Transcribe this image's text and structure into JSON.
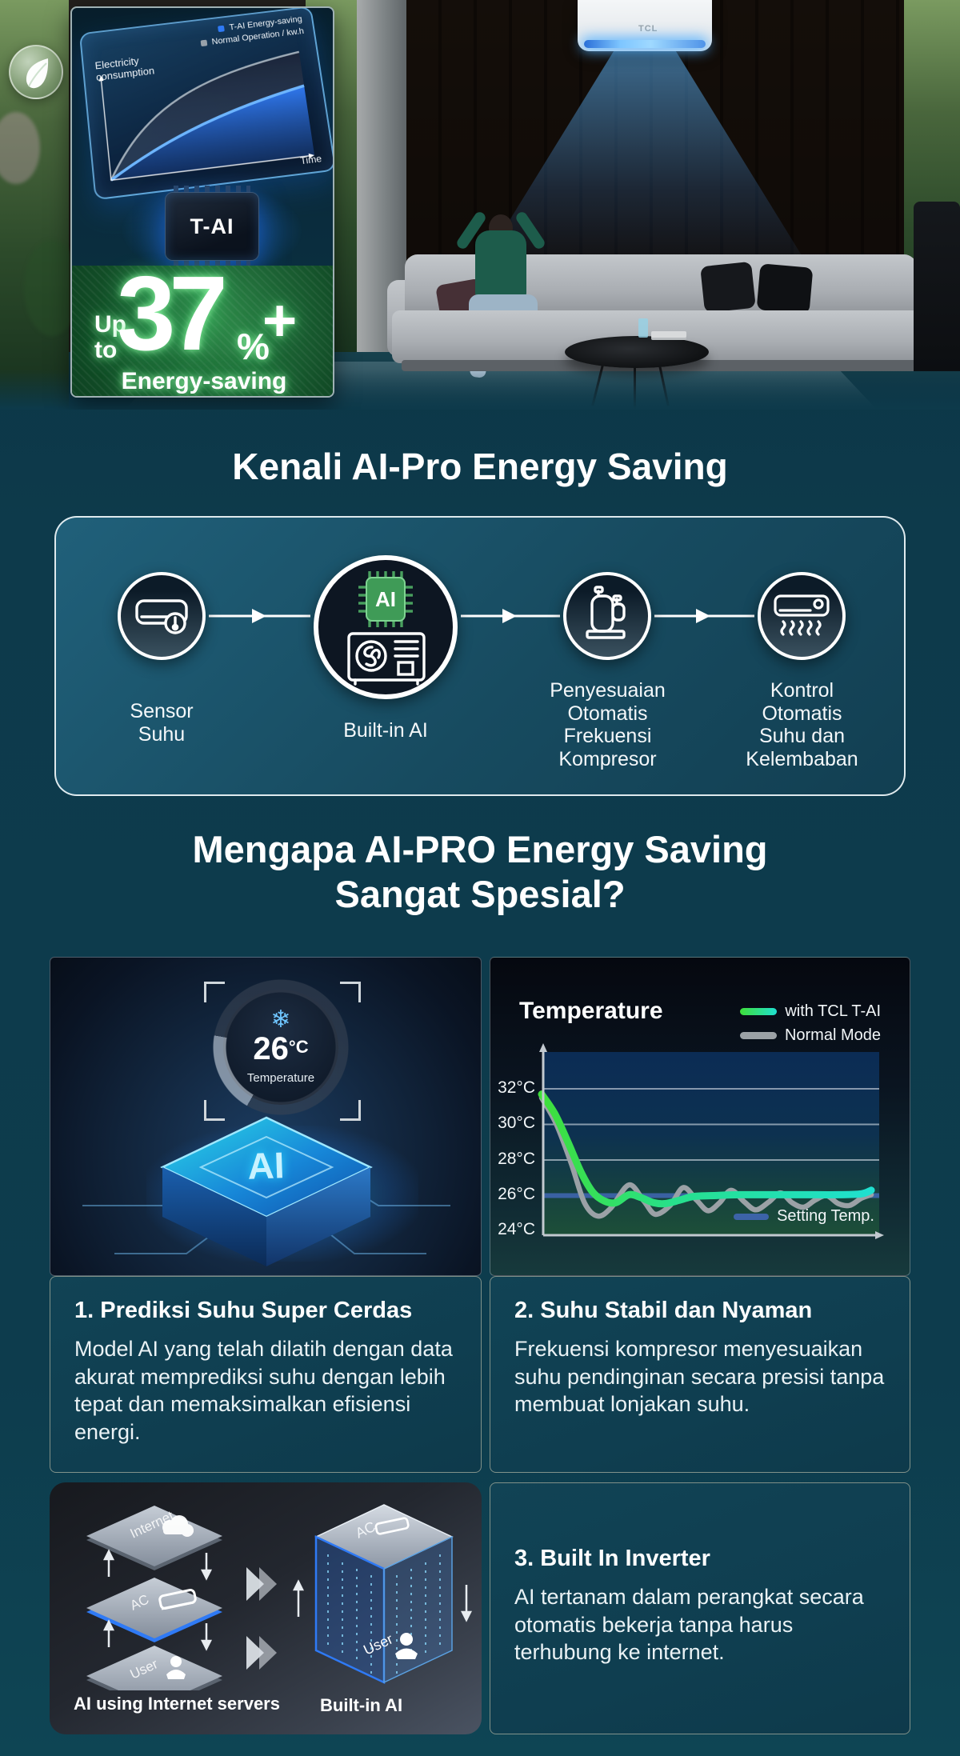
{
  "hero": {
    "ac_logo": "TCL",
    "leaf_icon": "eco-leaf",
    "chart": {
      "ylabel": "Electricity\nconsumption",
      "xlabel": "Time",
      "legend": [
        {
          "label": "T-AI Energy-saving",
          "color": "#2f7af5"
        },
        {
          "label": "Normal Operation / kw.h",
          "color": "#98a2aa"
        }
      ]
    },
    "chip_label": "T-AI",
    "badge": {
      "up_to": "Up\nto",
      "value": "37",
      "percent": "%",
      "plus": "+",
      "caption": "Energy-saving"
    }
  },
  "kenali": {
    "title": "Kenali AI-Pro Energy Saving",
    "steps": [
      {
        "icon": "ac-indoor-thermometer-icon",
        "label": "Sensor\nSuhu"
      },
      {
        "icon": "ai-chip-outdoor-unit-icon",
        "label": "Built-in AI"
      },
      {
        "icon": "compressor-icon",
        "label": "Penyesuaian\nOtomatis\nFrekuensi\nKompresor"
      },
      {
        "icon": "ac-airflow-icon",
        "label": "Kontrol\nOtomatis\nSuhu dan\nKelembaban"
      }
    ]
  },
  "mengapa": {
    "title": "Mengapa AI-PRO Energy Saving\nSangat Spesial?",
    "chip_card": {
      "gauge_value": "26",
      "gauge_unit": "°C",
      "gauge_caption": "Temperature",
      "snowflake": "❄",
      "chip_label": "AI"
    },
    "card1": {
      "title": "1. Prediksi Suhu Super Cerdas",
      "body": "Model AI yang telah dilatih dengan data akurat memprediksi suhu dengan lebih tepat dan memaksimalkan efisiensi energi."
    },
    "card2": {
      "title": "2. Suhu Stabil dan Nyaman",
      "body": "Frekuensi kompresor menyesuaikan suhu pendinginan secara presisi tanpa membuat lonjakan suhu."
    },
    "card3": {
      "title": "3. Built In Inverter",
      "body": "AI tertanam dalam perangkat secara otomatis bekerja tanpa harus terhubung ke internet.",
      "plates": [
        "Internet",
        "AC",
        "User"
      ],
      "cube_top": "AC",
      "cube_bottom": "User",
      "caption_left": "AI using Internet servers",
      "caption_right": "Built-in AI"
    }
  },
  "chart_data": {
    "type": "line",
    "title": "Temperature",
    "xlabel": "",
    "ylabel": "",
    "y_ticks": [
      "32°C",
      "30°C",
      "28°C",
      "26°C",
      "24°C"
    ],
    "y_tick_values": [
      32,
      30,
      28,
      26,
      24
    ],
    "ylim": [
      23.7,
      34.3
    ],
    "gridlines_at": [
      32,
      30,
      28
    ],
    "legend_position": "top-right",
    "setting_temp": {
      "label": "Setting Temp.",
      "value": 26,
      "color": "#3c63a8"
    },
    "series": [
      {
        "name": "Normal Mode",
        "color": "#9ba1a6",
        "x": [
          0,
          0.045,
          0.09,
          0.13,
          0.17,
          0.21,
          0.265,
          0.31,
          0.345,
          0.39,
          0.43,
          0.47,
          0.505,
          0.54,
          0.575,
          0.615,
          0.65,
          0.69,
          0.725,
          0.76,
          0.795,
          0.83,
          0.865,
          0.9,
          0.935,
          0.97,
          1.0
        ],
        "y": [
          31.5,
          30.0,
          27.8,
          25.6,
          24.85,
          25.3,
          26.6,
          25.7,
          24.95,
          25.45,
          26.45,
          25.75,
          25.15,
          25.6,
          26.3,
          25.65,
          25.2,
          25.65,
          26.15,
          25.6,
          25.35,
          25.75,
          26.0,
          25.55,
          25.45,
          25.85,
          26.05
        ]
      },
      {
        "name": "with TCL T-AI",
        "color_start": "#3fdf3a",
        "color_mid": "#27e08c",
        "color_end": "#1fe0d0",
        "x": [
          0,
          0.04,
          0.08,
          0.12,
          0.155,
          0.19,
          0.225,
          0.265,
          0.3,
          0.34,
          0.375,
          0.42,
          0.46,
          0.52,
          0.6,
          0.7,
          0.8,
          0.9,
          0.97,
          1.0
        ],
        "y": [
          31.7,
          30.6,
          29.0,
          27.3,
          26.2,
          25.7,
          25.6,
          26.05,
          25.9,
          25.6,
          25.55,
          25.75,
          25.95,
          26.0,
          26.05,
          26.05,
          26.05,
          26.05,
          26.1,
          26.3
        ]
      }
    ]
  }
}
